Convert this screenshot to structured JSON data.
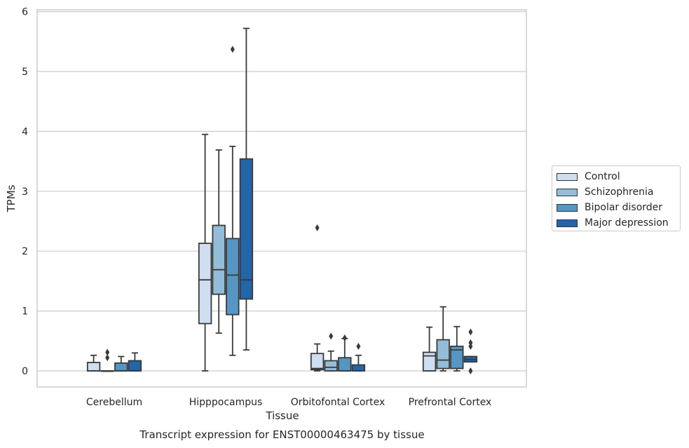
{
  "chart_data": {
    "type": "box",
    "xlabel": "Tissue",
    "ylabel": "TPMs",
    "caption": "Transcript expression for ENST00000463475 by tissue",
    "ylim": [
      -0.27,
      6.02
    ],
    "yticks": [
      0,
      1,
      2,
      3,
      4,
      5,
      6
    ],
    "grid": true,
    "legend_position": "right",
    "categories": [
      "Cerebellum",
      "Hipppocampus",
      "Orbitofontal Cortex",
      "Prefrontal Cortex"
    ],
    "series": [
      {
        "name": "Control",
        "color": "#cfdff0",
        "boxes": [
          {
            "whislo": 0,
            "q1": 0,
            "med": 0,
            "q3": 0.14,
            "whishi": 0.26,
            "fliers": []
          },
          {
            "whislo": 0,
            "q1": 0.79,
            "med": 1.52,
            "q3": 2.13,
            "whishi": 3.95,
            "fliers": []
          },
          {
            "whislo": 0,
            "q1": 0.02,
            "med": 0.04,
            "q3": 0.29,
            "whishi": 0.45,
            "fliers": [
              2.39
            ]
          },
          {
            "whislo": 0,
            "q1": 0,
            "med": 0.25,
            "q3": 0.31,
            "whishi": 0.73,
            "fliers": []
          }
        ]
      },
      {
        "name": "Schizophrenia",
        "color": "#93bdd8",
        "boxes": [
          {
            "whislo": 0,
            "q1": 0,
            "med": 0,
            "q3": 0,
            "whishi": 0,
            "fliers": [
              0.22,
              0.31
            ]
          },
          {
            "whislo": 0.63,
            "q1": 1.28,
            "med": 1.69,
            "q3": 2.43,
            "whishi": 3.69,
            "fliers": []
          },
          {
            "whislo": 0,
            "q1": 0,
            "med": 0.06,
            "q3": 0.17,
            "whishi": 0.33,
            "fliers": [
              0.58
            ]
          },
          {
            "whislo": 0,
            "q1": 0.04,
            "med": 0.18,
            "q3": 0.52,
            "whishi": 1.07,
            "fliers": []
          }
        ]
      },
      {
        "name": "Bipolar disorder",
        "color": "#5596c4",
        "boxes": [
          {
            "whislo": 0,
            "q1": 0,
            "med": 0,
            "q3": 0.13,
            "whishi": 0.24,
            "fliers": []
          },
          {
            "whislo": 0.26,
            "q1": 0.94,
            "med": 1.6,
            "q3": 2.21,
            "whishi": 3.75,
            "fliers": [
              5.37
            ]
          },
          {
            "whislo": 0,
            "q1": 0,
            "med": 0,
            "q3": 0.22,
            "whishi": 0.54,
            "fliers": [
              0.55
            ]
          },
          {
            "whislo": 0,
            "q1": 0.04,
            "med": 0.35,
            "q3": 0.41,
            "whishi": 0.74,
            "fliers": []
          }
        ]
      },
      {
        "name": "Major depression",
        "color": "#2265a8",
        "boxes": [
          {
            "whislo": 0,
            "q1": 0,
            "med": 0,
            "q3": 0.17,
            "whishi": 0.3,
            "fliers": []
          },
          {
            "whislo": 0.35,
            "q1": 1.2,
            "med": 1.52,
            "q3": 3.54,
            "whishi": 5.72,
            "fliers": []
          },
          {
            "whislo": 0,
            "q1": 0,
            "med": 0,
            "q3": 0.1,
            "whishi": 0.26,
            "fliers": [
              0.41
            ]
          },
          {
            "whislo": 0.15,
            "q1": 0.15,
            "med": 0.19,
            "q3": 0.24,
            "whishi": 0.24,
            "fliers": [
              0,
              0.41,
              0.47,
              0.65
            ]
          }
        ]
      }
    ]
  }
}
